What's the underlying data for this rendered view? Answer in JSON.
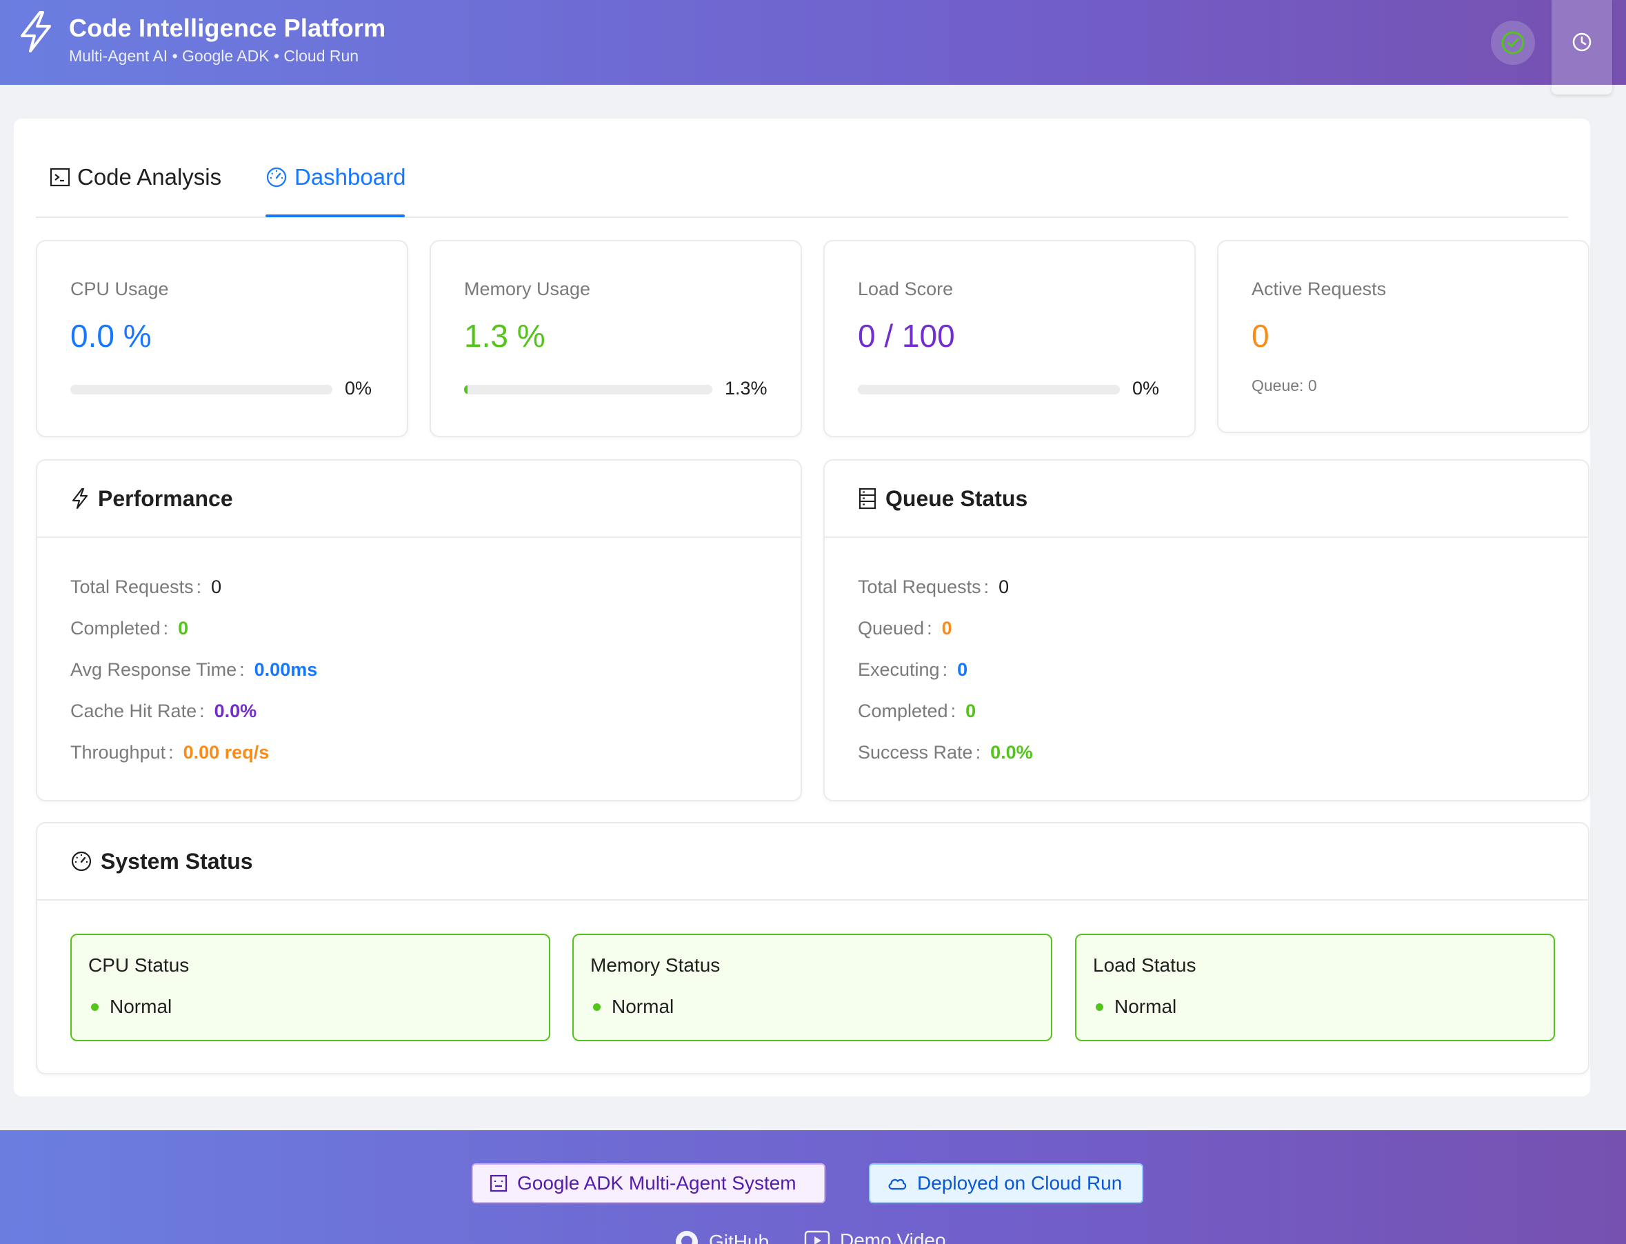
{
  "header": {
    "title": "Code Intelligence Platform",
    "subtitle": "Multi-Agent AI • Google ADK • Cloud Run",
    "logo_icon": "lightning-icon",
    "health_icon": "check-circle-icon",
    "history_icon": "clock-icon"
  },
  "tabs": [
    {
      "label": "Code Analysis",
      "icon": "terminal-icon",
      "active": false
    },
    {
      "label": "Dashboard",
      "icon": "dashboard-gauge-icon",
      "active": true
    }
  ],
  "stats": {
    "cpu": {
      "title": "CPU Usage",
      "value": "0.0",
      "unit": "%",
      "progress": 0,
      "progress_label": "0%",
      "color": "#1677ff"
    },
    "memory": {
      "title": "Memory Usage",
      "value": "1.3",
      "unit": "%",
      "progress": 1.3,
      "progress_label": "1.3%",
      "color": "#52c41a"
    },
    "load": {
      "title": "Load Score",
      "value": "0",
      "unit": "/ 100",
      "progress": 0,
      "progress_label": "0%",
      "color": "#722ed1"
    },
    "active": {
      "title": "Active Requests",
      "value": "0",
      "queue_label": "Queue: 0",
      "color": "#fa8c16"
    }
  },
  "performance": {
    "title": "Performance",
    "rows": [
      {
        "label": "Total Requests",
        "value": "0"
      },
      {
        "label": "Completed",
        "value": "0"
      },
      {
        "label": "Avg Response Time",
        "value": "0.00ms"
      },
      {
        "label": "Cache Hit Rate",
        "value": "0.0%"
      },
      {
        "label": "Throughput",
        "value": "0.00 req/s"
      }
    ]
  },
  "queue": {
    "title": "Queue Status",
    "rows": [
      {
        "label": "Total Requests",
        "value": "0"
      },
      {
        "label": "Queued",
        "value": "0"
      },
      {
        "label": "Executing",
        "value": "0"
      },
      {
        "label": "Completed",
        "value": "0"
      },
      {
        "label": "Success Rate",
        "value": "0.0%"
      }
    ]
  },
  "system": {
    "title": "System Status",
    "items": [
      {
        "title": "CPU Status",
        "state": "Normal"
      },
      {
        "title": "Memory Status",
        "state": "Normal"
      },
      {
        "title": "Load Status",
        "state": "Normal"
      }
    ]
  },
  "footer": {
    "adk_tag": "Google ADK Multi-Agent System",
    "cloud_tag": "Deployed on Cloud Run",
    "github": "GitHub",
    "demo": "Demo Video"
  },
  "colors": {
    "accent": "#1677ff",
    "success": "#52c41a",
    "purple": "#722ed1",
    "orange": "#fa8c16"
  }
}
